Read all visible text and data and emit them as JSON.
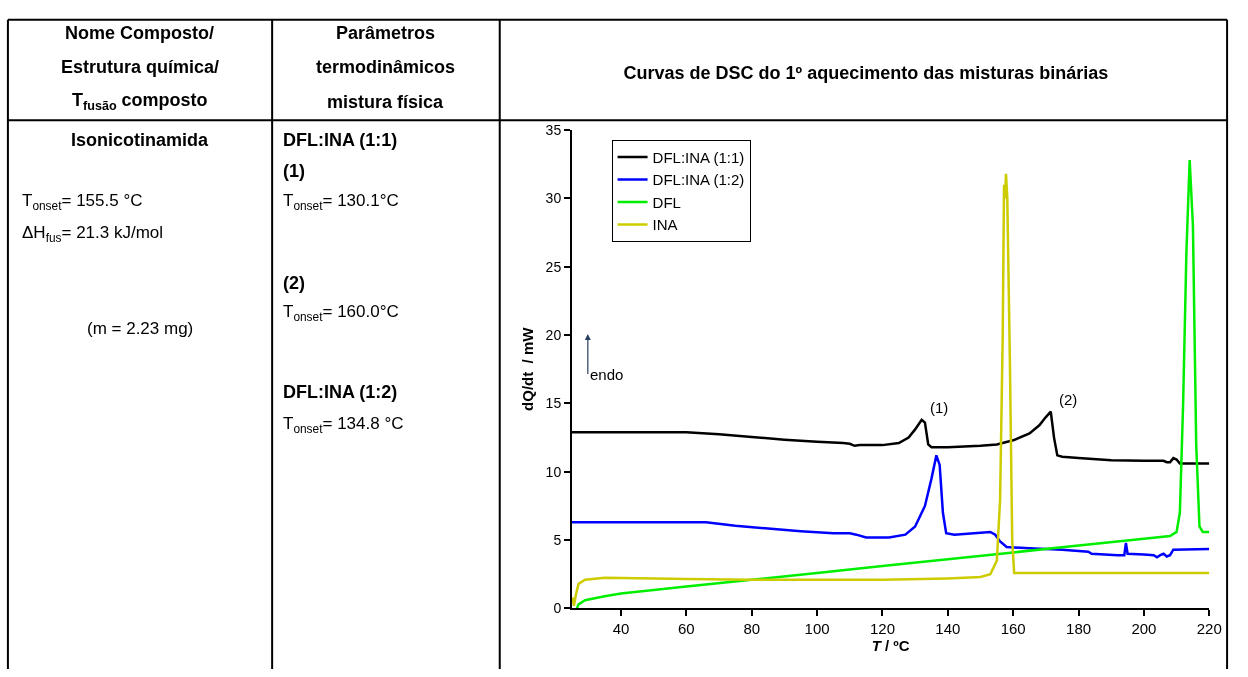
{
  "chart_data": {
    "type": "line",
    "title": "Curvas de DSC do 1º aquecimento das misturas binárias",
    "xlabel": "T / ºC",
    "ylabel": "dQ/dt  / mW",
    "xlim": [
      25,
      220
    ],
    "xticks": [
      40,
      60,
      80,
      100,
      120,
      140,
      160,
      180,
      200,
      220
    ],
    "ylim": [
      0,
      35
    ],
    "yticks": [
      0,
      5,
      10,
      15,
      20,
      25,
      30,
      35
    ],
    "legend": "top left",
    "marker": "none",
    "line_style": "solid",
    "series": [
      {
        "name": "DFL:INA (1:1)",
        "color": "#000000",
        "x": [
          25,
          60,
          70,
          80,
          90,
          100,
          108,
          110,
          111.5,
          113,
          120,
          125,
          128,
          130,
          132,
          133,
          134,
          135,
          140,
          150,
          155,
          160,
          165,
          168,
          170,
          171.5,
          172.5,
          173.5,
          175,
          180,
          190,
          200,
          206,
          207,
          208,
          209,
          210,
          211,
          220
        ],
        "values": [
          12.9,
          12.9,
          12.75,
          12.55,
          12.35,
          12.2,
          12.1,
          12.05,
          11.9,
          11.95,
          11.95,
          12.1,
          12.5,
          13.1,
          13.8,
          13.6,
          12.0,
          11.8,
          11.8,
          11.9,
          12.0,
          12.3,
          12.8,
          13.4,
          14.0,
          14.4,
          12.5,
          11.2,
          11.1,
          11.0,
          10.85,
          10.8,
          10.8,
          10.7,
          10.7,
          11.0,
          10.9,
          10.6,
          10.6
        ]
      },
      {
        "name": "DFL:INA (1:2)",
        "color": "#0000ff",
        "x": [
          25,
          66,
          75,
          85,
          95,
          105,
          110,
          112,
          115,
          122,
          127,
          130,
          133,
          135,
          136.5,
          137.5,
          138.5,
          139.5,
          142,
          148,
          153,
          154.5,
          156,
          158,
          165,
          175,
          183,
          184,
          192,
          194,
          194.5,
          195,
          200,
          203,
          204,
          205,
          206,
          207,
          208,
          209,
          220
        ],
        "values": [
          6.3,
          6.3,
          6.05,
          5.85,
          5.65,
          5.5,
          5.5,
          5.4,
          5.2,
          5.2,
          5.4,
          6.0,
          7.5,
          9.5,
          11.2,
          10.5,
          7.0,
          5.5,
          5.4,
          5.5,
          5.6,
          5.4,
          4.9,
          4.5,
          4.4,
          4.3,
          4.15,
          4.0,
          3.9,
          3.9,
          4.8,
          4.0,
          3.95,
          3.9,
          3.75,
          3.9,
          4.0,
          3.8,
          3.9,
          4.3,
          4.35
        ]
      },
      {
        "name": "DFL",
        "color": "#00ee00",
        "x": [
          26.5,
          27,
          29,
          35,
          40,
          60,
          80,
          100,
          120,
          140,
          160,
          180,
          200,
          208,
          210,
          211,
          212,
          213,
          214,
          215,
          216,
          217,
          218,
          220
        ],
        "values": [
          0,
          0.3,
          0.6,
          0.9,
          1.1,
          1.6,
          2.1,
          2.6,
          3.1,
          3.6,
          4.1,
          4.6,
          5.1,
          5.3,
          5.6,
          7,
          15,
          26,
          32.8,
          28,
          12,
          6,
          5.6,
          5.6
        ]
      },
      {
        "name": "INA",
        "color": "#cccc00",
        "x": [
          25.2,
          25.6,
          26.2,
          27,
          29,
          35,
          60,
          80,
          100,
          120,
          140,
          150,
          153,
          155,
          156,
          156.8,
          157.2,
          157.5,
          157.8,
          158.2,
          159,
          159.7,
          160.3,
          170,
          220
        ],
        "values": [
          0.8,
          0.2,
          1.0,
          1.8,
          2.1,
          2.25,
          2.15,
          2.1,
          2.1,
          2.1,
          2.2,
          2.3,
          2.5,
          3.5,
          8,
          20,
          31,
          30,
          31.8,
          30,
          18,
          5,
          2.6,
          2.6,
          2.6
        ]
      }
    ],
    "annotations": [
      "Nome Composto/",
      "Estrutura química/",
      "T$_{fusão}$ composto",
      "Parâmetros",
      "termodinâmicos",
      "mistura física",
      "Isonicotinamida",
      "T$_{onset}$= 155.5 °C",
      "ΔH$_{fus}$= 21.3 kJ/mol",
      "(m = 2.23 mg)",
      "DFL:INA (1:1)",
      "(1)",
      "T$_{onset}$= 130.1°C",
      "(2)",
      "T$_{onset}$= 160.0°C",
      "DFL:INA (1:2)",
      "T$_{onset}$= 134.8 °C",
      "endo",
      {
        "text": "(1)",
        "x": 132,
        "y": 13.8
      },
      {
        "text": "(2)",
        "x": 171.5,
        "y": 14.4
      }
    ]
  }
}
